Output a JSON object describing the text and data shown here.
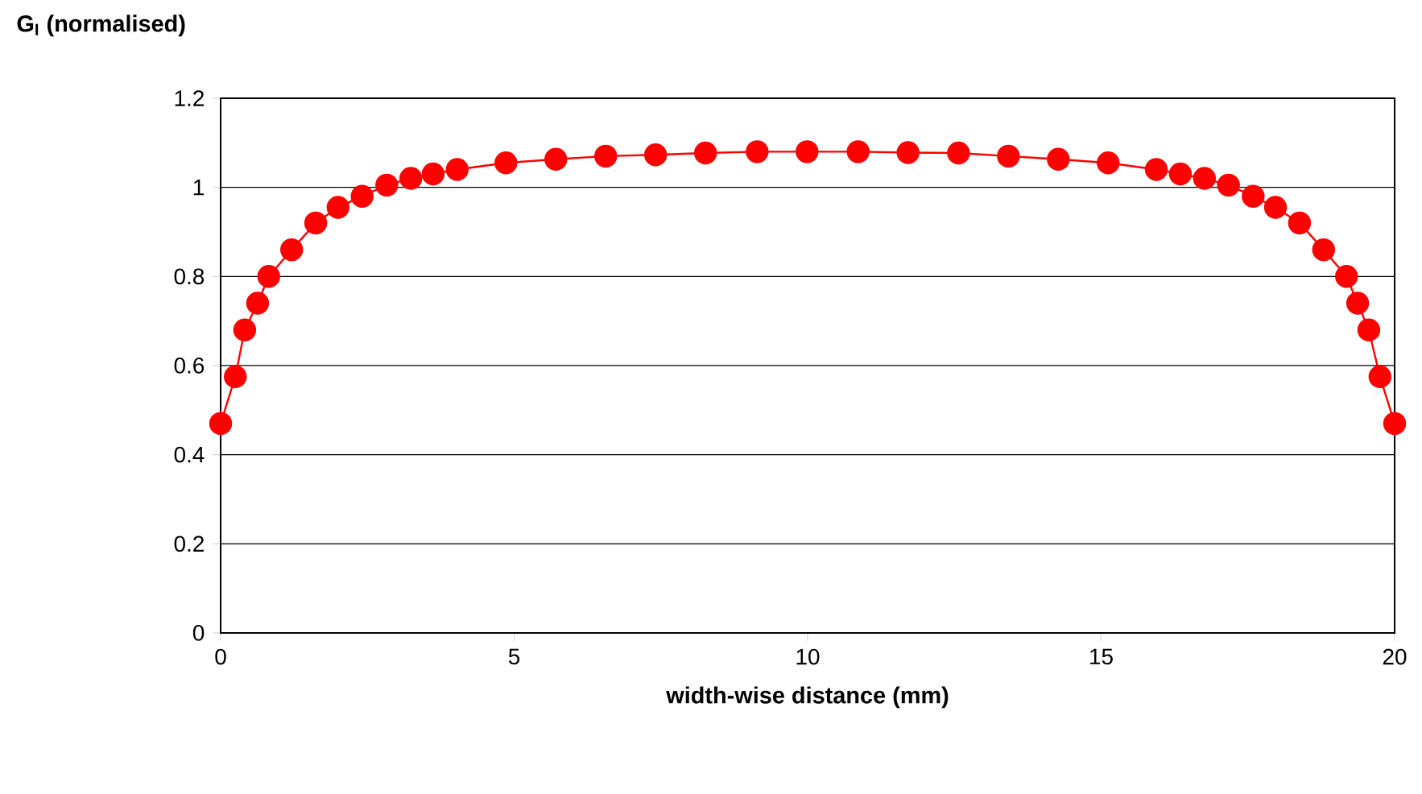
{
  "chart_data": {
    "type": "line",
    "xlabel": "width-wise distance (mm)",
    "ylabel": "G$_{I}$ (normalised)",
    "x": [
      0,
      0.25,
      0.41,
      0.63,
      0.82,
      1.21,
      1.62,
      2.0,
      2.41,
      2.83,
      3.24,
      3.62,
      4.03,
      4.86,
      5.71,
      6.56,
      7.41,
      8.26,
      9.14,
      9.99,
      10.86,
      11.71,
      12.57,
      13.42,
      14.27,
      15.12,
      15.94,
      16.35,
      16.76,
      17.17,
      17.59,
      17.97,
      18.38,
      18.79,
      19.18,
      19.37,
      19.56,
      19.75,
      20
    ],
    "series": [
      {
        "color": "#ff0000",
        "values": [
          0.47,
          0.575,
          0.68,
          0.74,
          0.8,
          0.86,
          0.92,
          0.955,
          0.98,
          1.005,
          1.02,
          1.03,
          1.04,
          1.055,
          1.063,
          1.07,
          1.073,
          1.077,
          1.08,
          1.08,
          1.08,
          1.078,
          1.077,
          1.07,
          1.063,
          1.055,
          1.04,
          1.03,
          1.02,
          1.005,
          0.98,
          0.955,
          0.92,
          0.86,
          0.8,
          0.74,
          0.68,
          0.575,
          0.47
        ]
      }
    ],
    "xlim": [
      0,
      20
    ],
    "xticks": [
      0,
      5,
      10,
      15,
      20
    ],
    "ylim": [
      0,
      1.2
    ],
    "yticks": [
      0,
      0.2,
      0.4,
      0.6,
      0.8,
      1,
      1.2
    ],
    "grid": "y",
    "marker": "circle",
    "line_style": "solid"
  }
}
